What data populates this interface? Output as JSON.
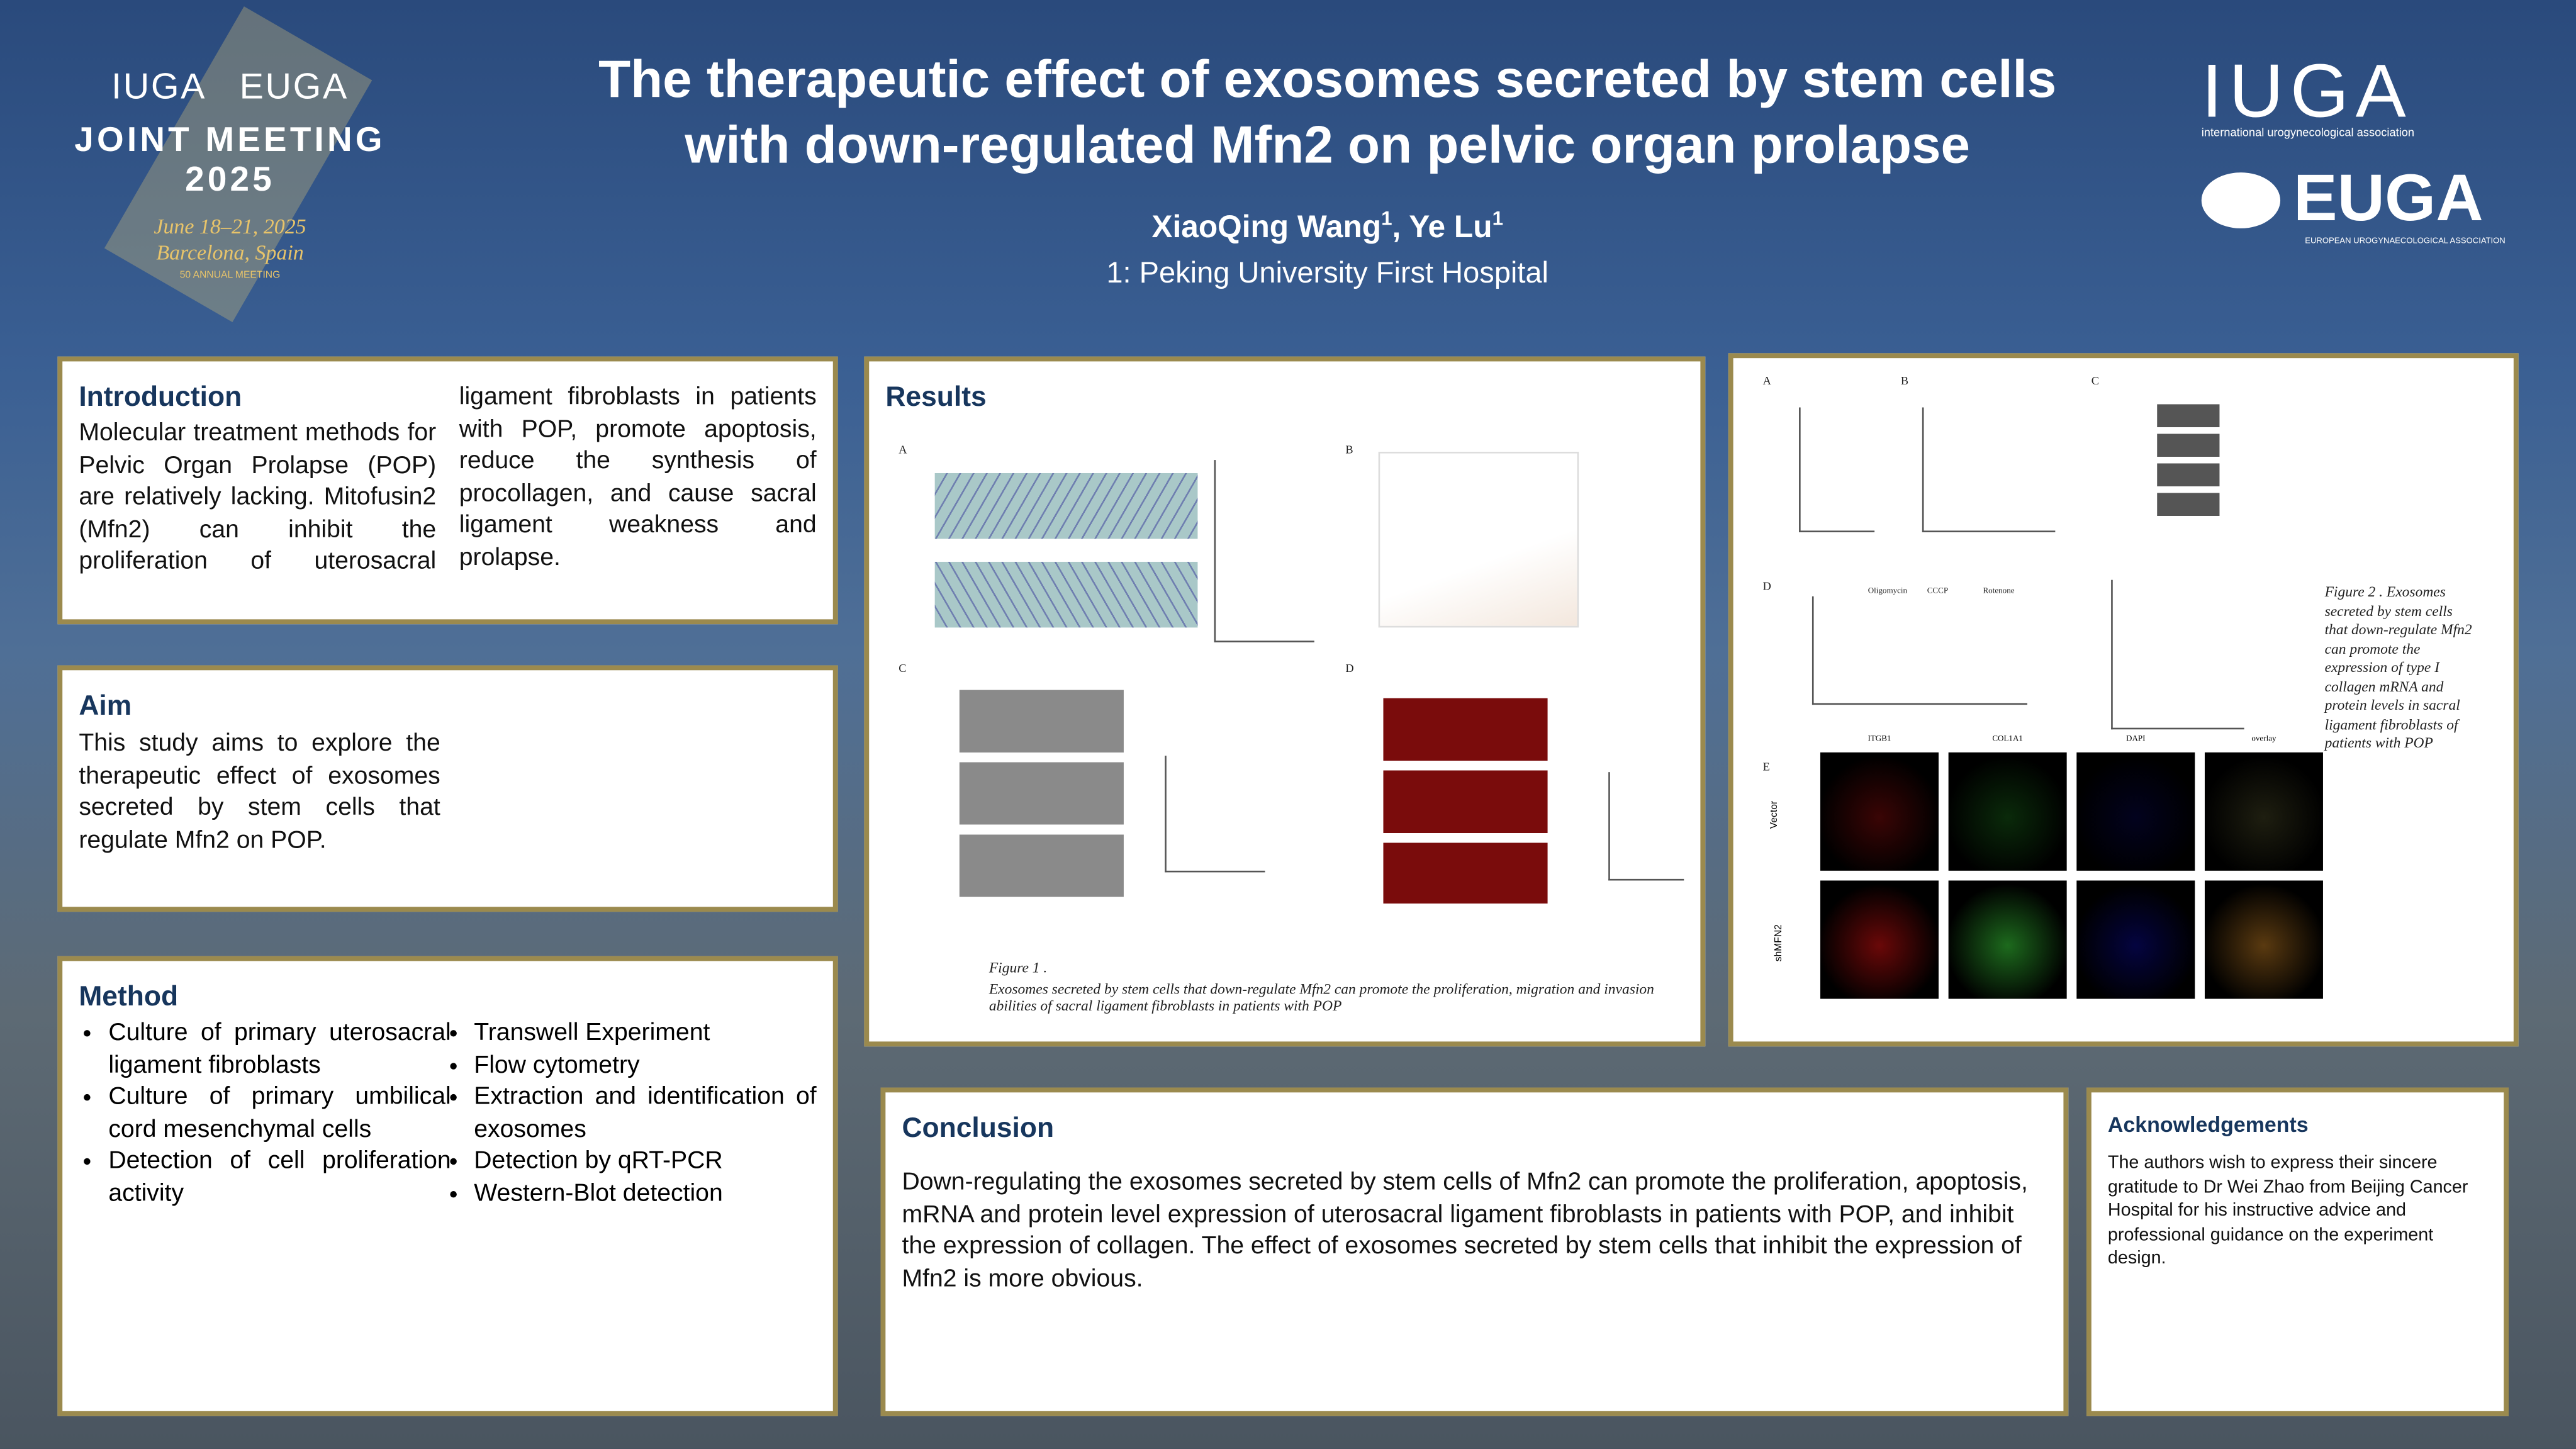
{
  "header": {
    "title_line1": "The therapeutic effect of exosomes secreted by stem cells",
    "title_line2": "with down-regulated Mfn2 on pelvic organ prolapse",
    "author1": "XiaoQing Wang",
    "author1_sup": "1",
    "author2": ", Ye Lu",
    "author2_sup": "1",
    "affiliation": "1: Peking University  First Hospital"
  },
  "meeting_logo": {
    "iuga": "IUGA",
    "euga": "EUGA",
    "line1": "JOINT MEETING",
    "line2": "2025",
    "dates": "June 18–21, 2025",
    "place": "Barcelona, Spain",
    "anniversary": "50 ANNUAL MEETING"
  },
  "right_logo": {
    "iuga": "IUGA",
    "iuga_sub": "international urogynecological association",
    "euga": "EUGA",
    "euga_sub": "EUROPEAN UROGYNAECOLOGICAL ASSOCIATION"
  },
  "introduction": {
    "heading": "Introduction",
    "text": "Molecular treatment methods for Pelvic Organ Prolapse (POP) are relatively lacking. Mitofusin2 (Mfn2) can inhibit the proliferation of uterosacral ligament fibroblasts in patients with POP, promote apoptosis, reduce the synthesis of procollagen, and cause sacral ligament weakness and prolapse."
  },
  "aim": {
    "heading": "Aim",
    "text": "This study aims to explore the therapeutic effect of exosomes secreted by stem cells that regulate Mfn2 on POP."
  },
  "method": {
    "heading": "Method",
    "items": [
      "Culture of primary uterosacral ligament fibroblasts",
      "Culture of primary umbilical cord mesenchymal cells",
      "Detection of cell proliferation activity",
      "Transwell Experiment",
      "Flow cytometry",
      "Extraction and identification of exosomes",
      "Detection by qRT-PCR",
      "Western-Blot detection"
    ]
  },
  "results": {
    "heading": "Results",
    "panels": [
      "A",
      "B",
      "C",
      "D"
    ],
    "fig1_title": "Figure 1 .",
    "fig1_caption": "Exosomes secreted by stem cells that down-regulate Mfn2 can promote the proliferation, migration and invasion abilities of sacral ligament fibroblasts in patients with POP"
  },
  "figure2": {
    "panels": [
      "A",
      "B",
      "C",
      "D",
      "E"
    ],
    "caption": "Figure 2 . Exosomes secreted by stem cells that down-regulate Mfn2 can promote the expression of type I collagen mRNA and protein levels in sacral ligament fibroblasts of patients with POP",
    "e_columns": [
      "ITGB1",
      "COL1A1",
      "DAPI",
      "overlay"
    ],
    "e_rows": [
      "Vector",
      "shMFN2"
    ],
    "d_labels": [
      "Oligomycin",
      "CCCP",
      "Rotenone"
    ]
  },
  "conclusion": {
    "heading": "Conclusion",
    "text": "Down-regulating the exosomes secreted by stem cells of Mfn2 can promote the proliferation, apoptosis, mRNA and protein level expression of uterosacral ligament fibroblasts in patients with POP, and inhibit the expression of collagen. The effect of exosomes secreted by stem cells that inhibit the expression of Mfn2 is more obvious."
  },
  "acknowledgements": {
    "heading": "Acknowledgements",
    "text": "The authors wish to express their sincere gratitude to Dr Wei Zhao from Beijing Cancer Hospital for his instructive advice and professional guidance on the experiment design."
  }
}
